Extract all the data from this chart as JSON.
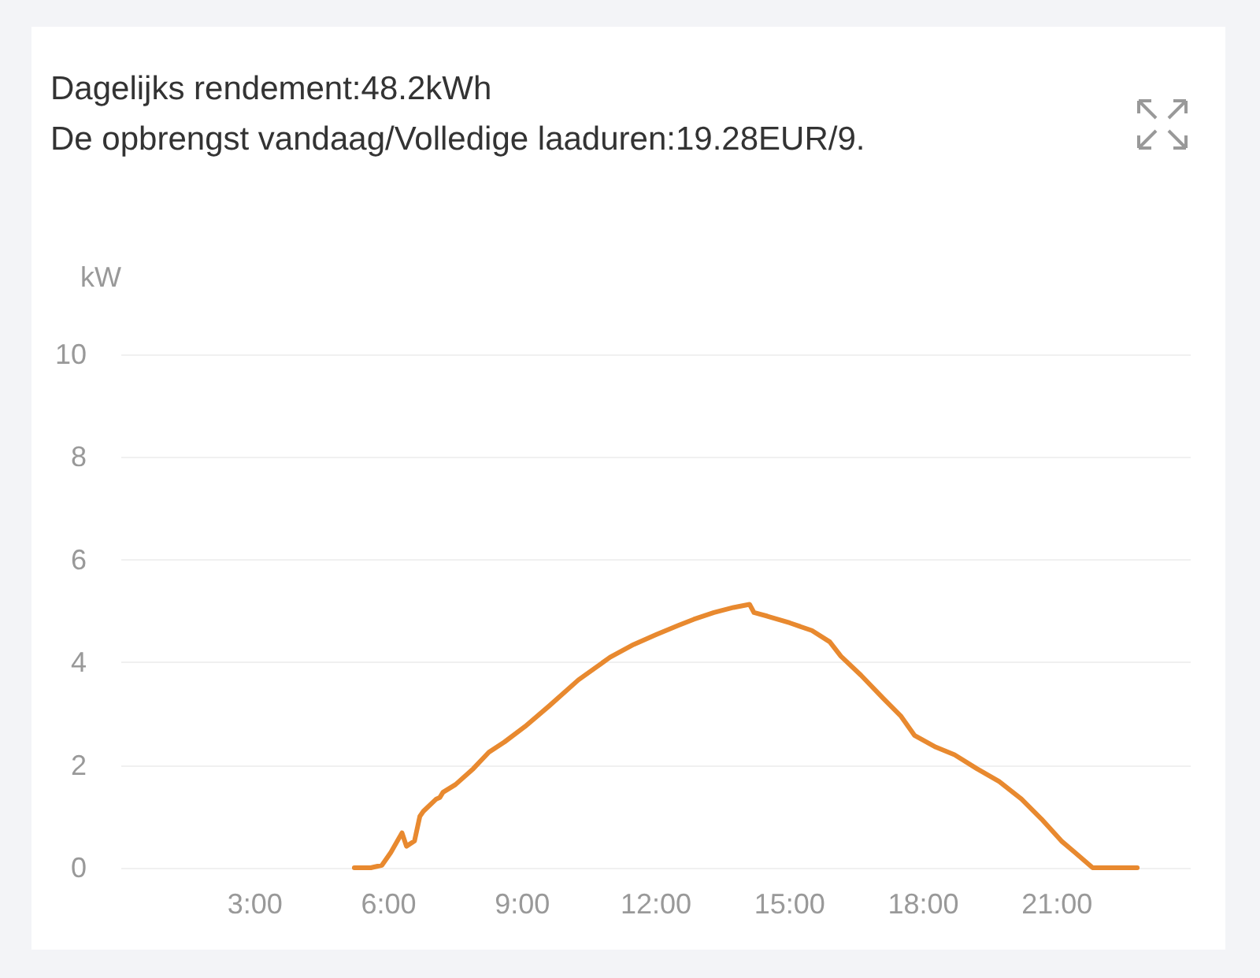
{
  "chart_data": {
    "type": "line",
    "title": "Dagelijks rendement:48.2kWh",
    "subtitle": "De opbrengst vandaag/Volledige laaduren:19.28EUR/9.",
    "ylabel": "kW",
    "x": [
      5.23,
      5.6,
      5.85,
      6.05,
      6.3,
      6.4,
      6.58,
      6.7,
      6.78,
      7.07,
      7.15,
      7.22,
      7.5,
      7.9,
      8.25,
      8.6,
      9.06,
      9.6,
      10.26,
      10.97,
      11.5,
      12.0,
      12.5,
      12.85,
      13.3,
      13.74,
      14.1,
      14.2,
      14.5,
      15.0,
      15.5,
      15.9,
      16.15,
      16.6,
      17.1,
      17.5,
      17.8,
      18.28,
      18.7,
      19.2,
      19.7,
      20.2,
      20.65,
      21.1,
      21.4,
      21.8,
      22.8
    ],
    "series": [
      {
        "color": "#e8892f",
        "values": [
          0,
          0,
          0.05,
          0.3,
          0.68,
          0.42,
          0.52,
          1.0,
          1.1,
          1.34,
          1.37,
          1.47,
          1.62,
          1.93,
          2.25,
          2.45,
          2.75,
          3.15,
          3.66,
          4.1,
          4.35,
          4.54,
          4.72,
          4.84,
          4.97,
          5.07,
          5.13,
          4.97,
          4.9,
          4.77,
          4.62,
          4.4,
          4.12,
          3.75,
          3.3,
          2.95,
          2.58,
          2.35,
          2.2,
          1.93,
          1.68,
          1.34,
          0.95,
          0.52,
          0.3,
          0,
          0
        ]
      }
    ],
    "xlim": [
      0,
      24
    ],
    "xticks": [
      {
        "value": 3,
        "label": "3:00"
      },
      {
        "value": 6,
        "label": "6:00"
      },
      {
        "value": 9,
        "label": "9:00"
      },
      {
        "value": 12,
        "label": "12:00"
      },
      {
        "value": 15,
        "label": "15:00"
      },
      {
        "value": 18,
        "label": "18:00"
      },
      {
        "value": 21,
        "label": "21:00"
      }
    ],
    "ylim": [
      0,
      10
    ],
    "yticks": [
      0,
      2,
      4,
      6,
      8,
      10
    ],
    "grid": "y",
    "marker": "none",
    "line_style": "solid"
  }
}
